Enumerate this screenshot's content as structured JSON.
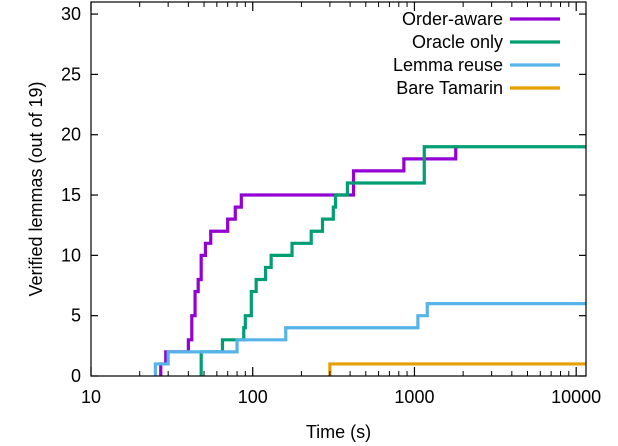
{
  "chart_data": {
    "type": "line",
    "title": "",
    "xlabel": "Time (s)",
    "ylabel": "Verified lemmas (out of 19)",
    "xscale": "log",
    "xlim": [
      10,
      11500
    ],
    "ylim": [
      0,
      31
    ],
    "x_ticks": [
      10,
      100,
      1000,
      10000
    ],
    "x_tick_labels": [
      "10",
      "100",
      "1000",
      "10000"
    ],
    "y_ticks": [
      0,
      5,
      10,
      15,
      20,
      25,
      30
    ],
    "y_tick_labels": [
      "0",
      "5",
      "10",
      "15",
      "20",
      "25",
      "30"
    ],
    "grid": false,
    "legend_position": "top-right",
    "series": [
      {
        "name": "Order-aware",
        "color": "#9400D3",
        "steps": [
          [
            27,
            0
          ],
          [
            27,
            1
          ],
          [
            29,
            1
          ],
          [
            29,
            2
          ],
          [
            40,
            2
          ],
          [
            40,
            3
          ],
          [
            42,
            3
          ],
          [
            42,
            5
          ],
          [
            44,
            5
          ],
          [
            44,
            7
          ],
          [
            46,
            7
          ],
          [
            46,
            8
          ],
          [
            48,
            8
          ],
          [
            48,
            10
          ],
          [
            51,
            10
          ],
          [
            51,
            11
          ],
          [
            55,
            11
          ],
          [
            55,
            12
          ],
          [
            70,
            12
          ],
          [
            70,
            13
          ],
          [
            78,
            13
          ],
          [
            78,
            14
          ],
          [
            85,
            14
          ],
          [
            85,
            15
          ],
          [
            325,
            15
          ],
          [
            325,
            15
          ],
          [
            420,
            15
          ],
          [
            420,
            17
          ],
          [
            860,
            17
          ],
          [
            860,
            18
          ],
          [
            1800,
            18
          ],
          [
            1800,
            19
          ]
        ]
      },
      {
        "name": "Oracle only",
        "color": "#009E73",
        "steps": [
          [
            48,
            0
          ],
          [
            48,
            2
          ],
          [
            65,
            2
          ],
          [
            65,
            3
          ],
          [
            88,
            3
          ],
          [
            88,
            4
          ],
          [
            90,
            4
          ],
          [
            90,
            5
          ],
          [
            98,
            5
          ],
          [
            98,
            7
          ],
          [
            105,
            7
          ],
          [
            105,
            8
          ],
          [
            120,
            8
          ],
          [
            120,
            9
          ],
          [
            130,
            9
          ],
          [
            130,
            10
          ],
          [
            175,
            10
          ],
          [
            175,
            11
          ],
          [
            230,
            11
          ],
          [
            230,
            12
          ],
          [
            270,
            12
          ],
          [
            270,
            13
          ],
          [
            315,
            13
          ],
          [
            315,
            14
          ],
          [
            325,
            14
          ],
          [
            325,
            15
          ],
          [
            385,
            15
          ],
          [
            385,
            16
          ],
          [
            1150,
            16
          ],
          [
            1150,
            19
          ],
          [
            11500,
            19
          ]
        ]
      },
      {
        "name": "Lemma reuse",
        "color": "#56B4E9",
        "steps": [
          [
            25,
            0
          ],
          [
            25,
            1
          ],
          [
            30,
            1
          ],
          [
            30,
            2
          ],
          [
            80,
            2
          ],
          [
            80,
            3
          ],
          [
            160,
            3
          ],
          [
            160,
            4
          ],
          [
            1050,
            4
          ],
          [
            1050,
            5
          ],
          [
            1200,
            5
          ],
          [
            1200,
            6
          ],
          [
            11500,
            6
          ]
        ]
      },
      {
        "name": "Bare Tamarin",
        "color": "#E69F00",
        "steps": [
          [
            300,
            0
          ],
          [
            300,
            1
          ],
          [
            11500,
            1
          ]
        ]
      }
    ]
  }
}
